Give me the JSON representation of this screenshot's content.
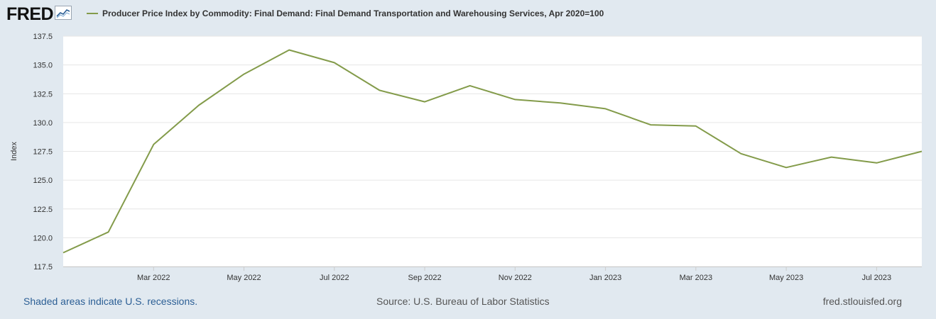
{
  "header": {
    "logo_text": "FRED",
    "logo_icon": "chart-line-icon"
  },
  "chart_data": {
    "type": "line",
    "title": "Producer Price Index by Commodity: Final Demand: Final Demand Transportation and Warehousing Services, Apr 2020=100",
    "xlabel": "",
    "ylabel": "Index",
    "ylim": [
      117.5,
      137.5
    ],
    "yticks": [
      "117.5",
      "120.0",
      "122.5",
      "125.0",
      "127.5",
      "130.0",
      "132.5",
      "135.0",
      "137.5"
    ],
    "xticks": [
      "Mar 2022",
      "May 2022",
      "Jul 2022",
      "Sep 2022",
      "Nov 2022",
      "Jan 2023",
      "Mar 2023",
      "May 2023",
      "Jul 2023"
    ],
    "grid": true,
    "series": [
      {
        "name": "Producer Price Index by Commodity: Final Demand: Final Demand Transportation and Warehousing Services, Apr 2020=100",
        "color": "#839b4a",
        "x": [
          "2022-01",
          "2022-02",
          "2022-03",
          "2022-04",
          "2022-05",
          "2022-06",
          "2022-07",
          "2022-08",
          "2022-09",
          "2022-10",
          "2022-11",
          "2022-12",
          "2023-01",
          "2023-02",
          "2023-03",
          "2023-04",
          "2023-05",
          "2023-06",
          "2023-07",
          "2023-08"
        ],
        "values": [
          118.7,
          120.5,
          128.1,
          131.5,
          134.2,
          136.3,
          135.2,
          132.8,
          131.8,
          133.2,
          132.0,
          131.7,
          131.2,
          129.8,
          129.7,
          127.3,
          126.1,
          127.0,
          126.5,
          127.5
        ]
      }
    ]
  },
  "footer": {
    "recession_note": "Shaded areas indicate U.S. recessions.",
    "source": "Source: U.S. Bureau of Labor Statistics",
    "site": "fred.stlouisfed.org"
  }
}
